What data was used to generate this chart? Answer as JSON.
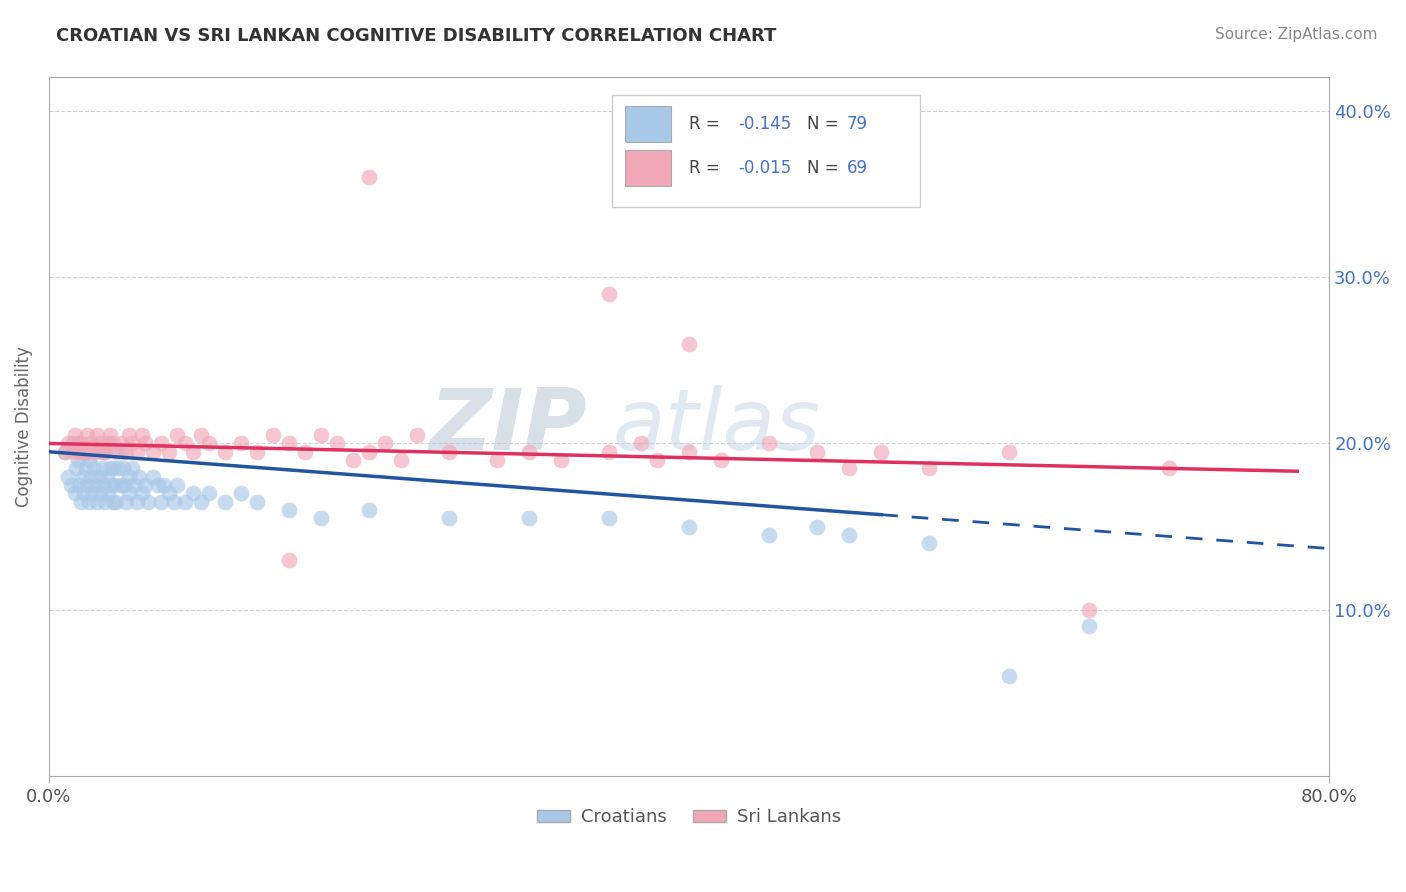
{
  "title": "CROATIAN VS SRI LANKAN COGNITIVE DISABILITY CORRELATION CHART",
  "source": "Source: ZipAtlas.com",
  "ylabel": "Cognitive Disability",
  "croatian_R": -0.145,
  "croatian_N": 79,
  "srilankan_R": -0.015,
  "srilankan_N": 69,
  "xlim": [
    0.0,
    0.8
  ],
  "ylim": [
    0.0,
    0.42
  ],
  "ytick_vals": [
    0.1,
    0.2,
    0.3,
    0.4
  ],
  "ytick_labels": [
    "10.0%",
    "20.0%",
    "30.0%",
    "40.0%"
  ],
  "croatian_color": "#A8C8E8",
  "srilankan_color": "#F0A8B8",
  "croatian_line_color": "#2255A0",
  "srilankan_line_color": "#E03060",
  "background_color": "#FFFFFF",
  "grid_color": "#CCCCCC",
  "title_color": "#333333",
  "watermark_zip_color": "#BEC8D8",
  "watermark_atlas_color": "#C8D8E8",
  "croatians_label": "Croatians",
  "srilankans_label": "Sri Lankans",
  "croatian_scatter_x": [
    0.01,
    0.012,
    0.014,
    0.015,
    0.016,
    0.017,
    0.018,
    0.019,
    0.02,
    0.02,
    0.021,
    0.022,
    0.022,
    0.023,
    0.024,
    0.025,
    0.025,
    0.026,
    0.027,
    0.028,
    0.029,
    0.03,
    0.03,
    0.031,
    0.032,
    0.033,
    0.034,
    0.035,
    0.035,
    0.036,
    0.037,
    0.038,
    0.039,
    0.04,
    0.04,
    0.041,
    0.042,
    0.043,
    0.045,
    0.045,
    0.046,
    0.047,
    0.048,
    0.05,
    0.05,
    0.052,
    0.053,
    0.055,
    0.056,
    0.058,
    0.06,
    0.062,
    0.065,
    0.068,
    0.07,
    0.072,
    0.075,
    0.078,
    0.08,
    0.085,
    0.09,
    0.095,
    0.1,
    0.11,
    0.12,
    0.13,
    0.15,
    0.17,
    0.2,
    0.25,
    0.3,
    0.35,
    0.4,
    0.45,
    0.5,
    0.55,
    0.6,
    0.65,
    0.48
  ],
  "croatian_scatter_y": [
    0.195,
    0.18,
    0.175,
    0.2,
    0.17,
    0.185,
    0.19,
    0.175,
    0.165,
    0.195,
    0.18,
    0.17,
    0.195,
    0.185,
    0.175,
    0.165,
    0.19,
    0.18,
    0.17,
    0.185,
    0.175,
    0.165,
    0.195,
    0.18,
    0.17,
    0.185,
    0.175,
    0.165,
    0.195,
    0.18,
    0.17,
    0.185,
    0.175,
    0.165,
    0.185,
    0.175,
    0.165,
    0.185,
    0.175,
    0.195,
    0.185,
    0.175,
    0.165,
    0.18,
    0.17,
    0.185,
    0.175,
    0.165,
    0.18,
    0.17,
    0.175,
    0.165,
    0.18,
    0.175,
    0.165,
    0.175,
    0.17,
    0.165,
    0.175,
    0.165,
    0.17,
    0.165,
    0.17,
    0.165,
    0.17,
    0.165,
    0.16,
    0.155,
    0.16,
    0.155,
    0.155,
    0.155,
    0.15,
    0.145,
    0.145,
    0.14,
    0.06,
    0.09,
    0.15
  ],
  "srilankan_scatter_x": [
    0.01,
    0.012,
    0.015,
    0.016,
    0.018,
    0.019,
    0.02,
    0.022,
    0.024,
    0.025,
    0.026,
    0.028,
    0.03,
    0.032,
    0.034,
    0.035,
    0.037,
    0.038,
    0.04,
    0.042,
    0.045,
    0.048,
    0.05,
    0.052,
    0.055,
    0.058,
    0.06,
    0.065,
    0.07,
    0.075,
    0.08,
    0.085,
    0.09,
    0.095,
    0.1,
    0.11,
    0.12,
    0.13,
    0.14,
    0.15,
    0.16,
    0.17,
    0.18,
    0.19,
    0.2,
    0.21,
    0.22,
    0.23,
    0.25,
    0.28,
    0.3,
    0.32,
    0.35,
    0.37,
    0.38,
    0.4,
    0.42,
    0.45,
    0.48,
    0.5,
    0.52,
    0.55,
    0.6,
    0.65,
    0.7,
    0.35,
    0.4,
    0.2,
    0.15
  ],
  "srilankan_scatter_y": [
    0.195,
    0.2,
    0.195,
    0.205,
    0.195,
    0.2,
    0.2,
    0.195,
    0.205,
    0.195,
    0.2,
    0.195,
    0.205,
    0.2,
    0.195,
    0.195,
    0.2,
    0.205,
    0.2,
    0.195,
    0.2,
    0.195,
    0.205,
    0.2,
    0.195,
    0.205,
    0.2,
    0.195,
    0.2,
    0.195,
    0.205,
    0.2,
    0.195,
    0.205,
    0.2,
    0.195,
    0.2,
    0.195,
    0.205,
    0.2,
    0.195,
    0.205,
    0.2,
    0.19,
    0.195,
    0.2,
    0.19,
    0.205,
    0.195,
    0.19,
    0.195,
    0.19,
    0.195,
    0.2,
    0.19,
    0.195,
    0.19,
    0.2,
    0.195,
    0.185,
    0.195,
    0.185,
    0.195,
    0.1,
    0.185,
    0.29,
    0.26,
    0.36,
    0.13
  ]
}
